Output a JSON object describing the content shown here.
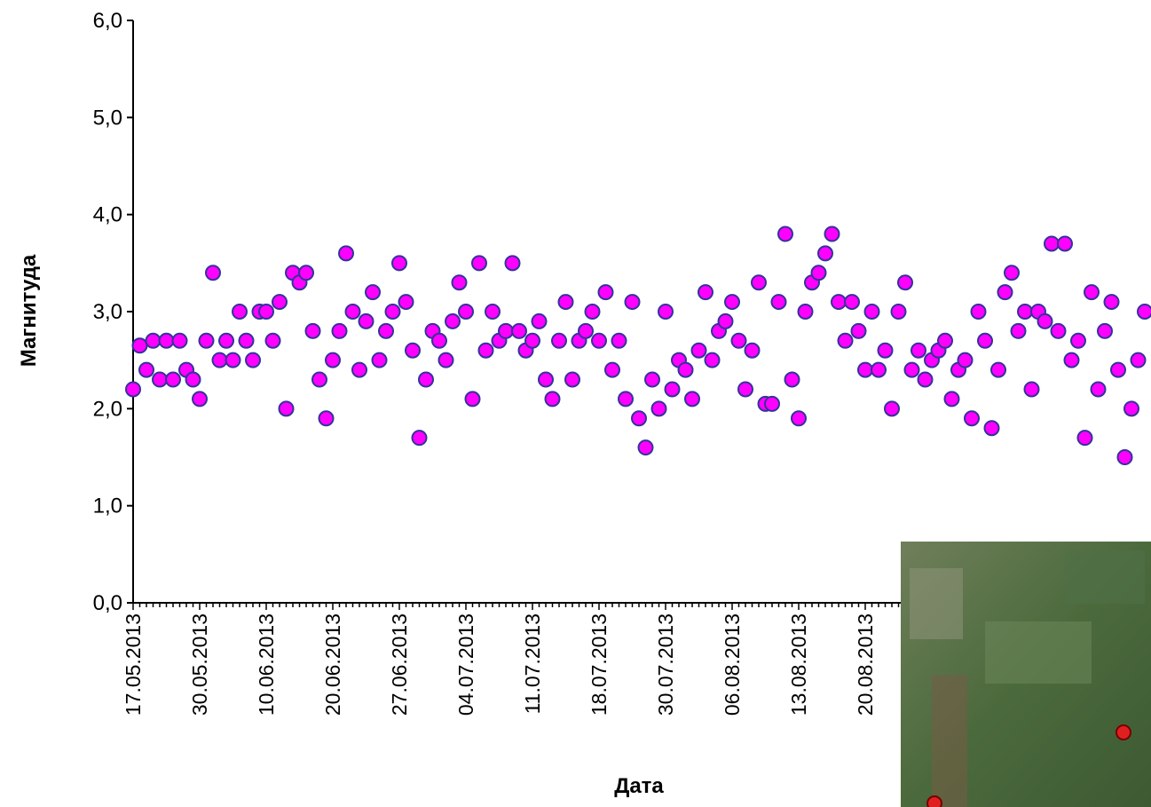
{
  "chart_data": {
    "type": "scatter",
    "x_label": "Дата",
    "y_label": "Магнитуда",
    "categories": [
      "17.05.2013",
      null,
      null,
      null,
      null,
      null,
      null,
      null,
      null,
      null,
      "30.05.2013",
      null,
      null,
      null,
      null,
      null,
      null,
      null,
      null,
      null,
      "10.06.2013",
      null,
      null,
      null,
      null,
      null,
      null,
      null,
      null,
      null,
      "20.06.2013",
      null,
      null,
      null,
      null,
      null,
      null,
      null,
      null,
      null,
      "27.06.2013",
      null,
      null,
      null,
      null,
      null,
      null,
      null,
      null,
      null,
      "04.07.2013",
      null,
      null,
      null,
      null,
      null,
      null,
      null,
      null,
      null,
      "11.07.2013",
      null,
      null,
      null,
      null,
      null,
      null,
      null,
      null,
      null,
      "18.07.2013",
      null,
      null,
      null,
      null,
      null,
      null,
      null,
      null,
      null,
      "30.07.2013",
      null,
      null,
      null,
      null,
      null,
      null,
      null,
      null,
      null,
      "06.08.2013",
      null,
      null,
      null,
      null,
      null,
      null,
      null,
      null,
      null,
      "13.08.2013",
      null,
      null,
      null,
      null,
      null,
      null,
      null,
      null,
      null,
      "20.08.2013",
      null,
      null,
      null,
      null,
      null,
      null,
      null,
      null,
      null,
      null,
      null,
      null,
      null,
      null,
      null,
      null,
      null,
      null,
      null,
      null,
      null,
      null,
      null,
      null,
      null,
      null,
      null,
      null,
      null,
      null,
      null,
      null,
      null,
      null,
      null,
      null,
      null,
      null,
      null,
      null,
      null,
      null
    ],
    "values": [
      2.2,
      2.65,
      2.4,
      2.7,
      2.3,
      2.7,
      2.3,
      2.7,
      2.4,
      2.3,
      2.1,
      2.7,
      3.4,
      2.5,
      2.7,
      2.5,
      3.0,
      2.7,
      2.5,
      3.0,
      3.0,
      2.7,
      3.1,
      2.0,
      3.4,
      3.3,
      3.4,
      2.8,
      2.3,
      1.9,
      2.5,
      2.8,
      3.6,
      3.0,
      2.4,
      2.9,
      3.2,
      2.5,
      2.8,
      3.0,
      3.5,
      3.1,
      2.6,
      1.7,
      2.3,
      2.8,
      2.7,
      2.5,
      2.9,
      3.3,
      3.0,
      2.1,
      3.5,
      2.6,
      3.0,
      2.7,
      2.8,
      3.5,
      2.8,
      2.6,
      2.7,
      2.9,
      2.3,
      2.1,
      2.7,
      3.1,
      2.3,
      2.7,
      2.8,
      3.0,
      2.7,
      3.2,
      2.4,
      2.7,
      2.1,
      3.1,
      1.9,
      1.6,
      2.3,
      2.0,
      3.0,
      2.2,
      2.5,
      2.4,
      2.1,
      2.6,
      3.2,
      2.5,
      2.8,
      2.9,
      3.1,
      2.7,
      2.2,
      2.6,
      3.3,
      2.05,
      2.05,
      3.1,
      3.8,
      2.3,
      1.9,
      3.0,
      3.3,
      3.4,
      3.6,
      3.8,
      3.1,
      2.7,
      3.1,
      2.8,
      2.4,
      3.0,
      2.4,
      2.6,
      2.0,
      3.0,
      3.3,
      2.4,
      2.6,
      2.3,
      2.5,
      2.6,
      2.7,
      2.1,
      2.4,
      2.5,
      1.9,
      3.0,
      2.7,
      1.8,
      2.4,
      3.2,
      3.4,
      2.8,
      3.0,
      2.2,
      3.0,
      2.9,
      3.7,
      2.8,
      3.7,
      2.5,
      2.7,
      1.7,
      3.2,
      2.2,
      2.8,
      3.1,
      2.4,
      1.5,
      2.0,
      2.5,
      3.0
    ],
    "color": "#ff00ff",
    "edge_color": "#333399",
    "ylim": [
      0,
      6
    ],
    "yticks": [
      {
        "value": 0,
        "label": "0,0"
      },
      {
        "value": 1,
        "label": "1,0"
      },
      {
        "value": 2,
        "label": "2,0"
      },
      {
        "value": 3,
        "label": "3,0"
      },
      {
        "value": 4,
        "label": "4,0"
      },
      {
        "value": 5,
        "label": "5,0"
      },
      {
        "value": 6,
        "label": "6,0"
      }
    ],
    "grid": false
  }
}
